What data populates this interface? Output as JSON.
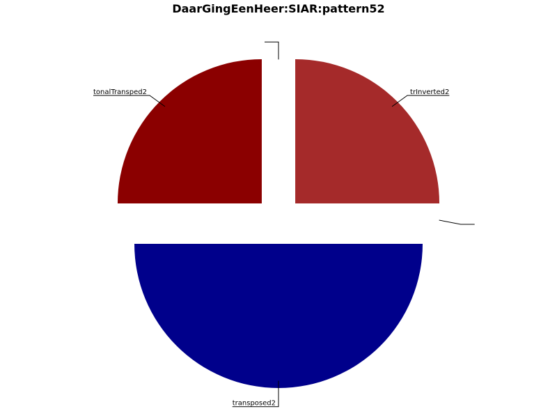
{
  "chart_data": {
    "type": "pie",
    "title": "DaarGingEenHeer:SIAR:pattern52",
    "start_angle_deg": 90,
    "direction": "counterclockwise",
    "slices": [
      {
        "label": "",
        "value": 0,
        "color": "#000000"
      },
      {
        "label": "tonalTransped2",
        "value": 25,
        "color": "#8b0000"
      },
      {
        "label": "transposed2",
        "value": 50,
        "color": "#00008b"
      },
      {
        "label": "",
        "value": 0,
        "color": "#000000"
      },
      {
        "label": "trInverted2",
        "value": 25,
        "color": "#a52a2a"
      }
    ]
  }
}
